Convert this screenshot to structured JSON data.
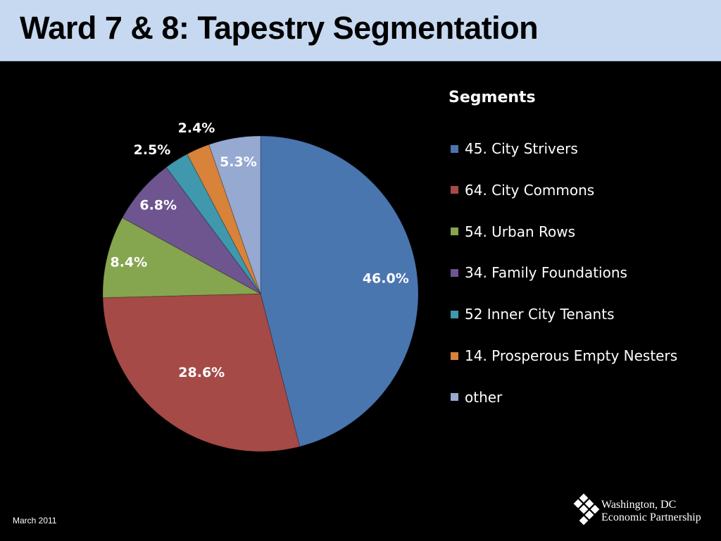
{
  "slide": {
    "title": "Ward 7 & 8: Tapestry Segmentation",
    "footer_date": "March 2011",
    "logo": {
      "line1": "Washington, DC",
      "line2": "Economic Partnership",
      "icon": "diamond-cluster-icon"
    }
  },
  "chart_data": {
    "type": "pie",
    "title": "Segments",
    "legend_position": "right",
    "slices": [
      {
        "label": "45. City Strivers",
        "value": 46.0,
        "display": "46.0%",
        "color": "#4a76b0"
      },
      {
        "label": "64. City Commons",
        "value": 28.6,
        "display": "28.6%",
        "color": "#a54a47"
      },
      {
        "label": "54. Urban Rows",
        "value": 8.4,
        "display": "8.4%",
        "color": "#86a54f"
      },
      {
        "label": "34. Family Foundations",
        "value": 6.8,
        "display": "6.8%",
        "color": "#6e558f"
      },
      {
        "label": "52 Inner City Tenants",
        "value": 2.5,
        "display": "2.5%",
        "color": "#3f98ad"
      },
      {
        "label": "14. Prosperous Empty Nesters",
        "value": 2.4,
        "display": "2.4%",
        "color": "#d8823a"
      },
      {
        "label": "other",
        "value": 5.3,
        "display": "5.3%",
        "color": "#95a9d1"
      }
    ]
  }
}
